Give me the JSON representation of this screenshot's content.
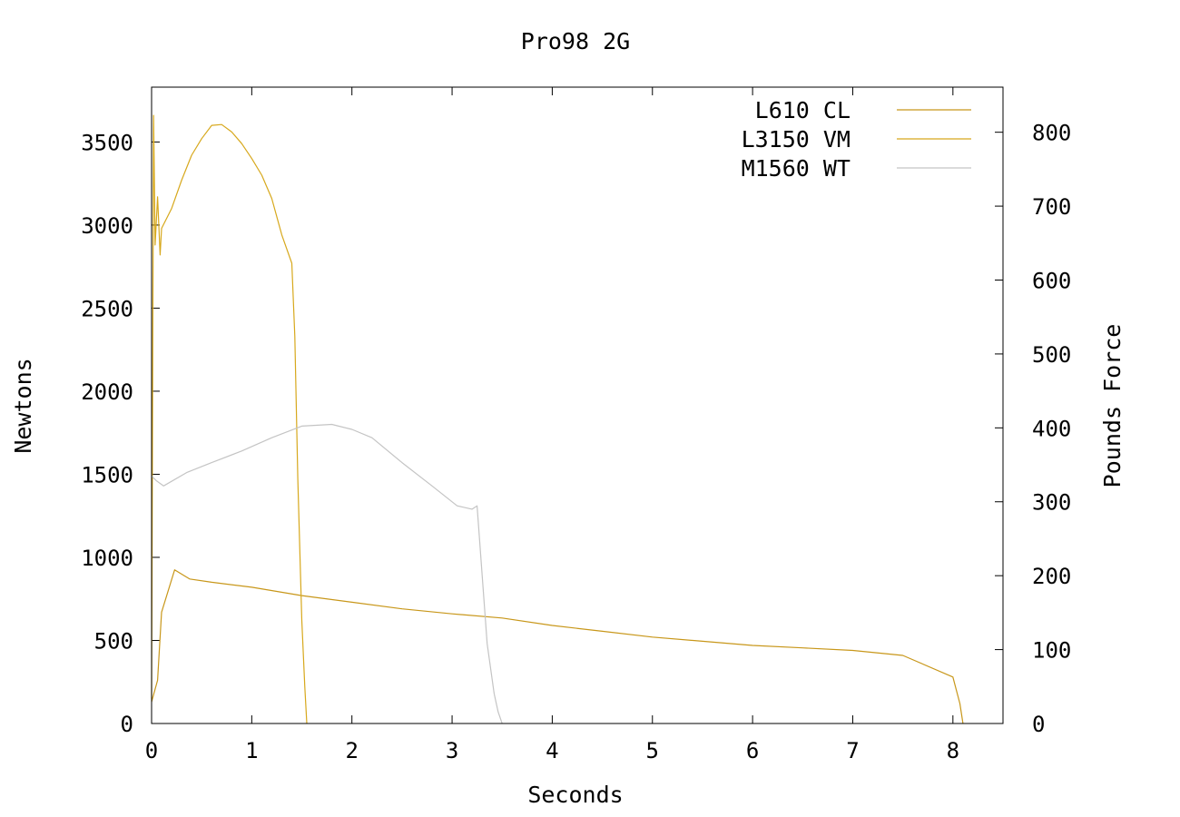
{
  "chart_data": {
    "type": "line",
    "title": "Pro98 2G",
    "xlabel": "Seconds",
    "ylabel": "Newtons",
    "y2label": "Pounds Force",
    "xlim": [
      0,
      8.5
    ],
    "ylim": [
      0,
      3830
    ],
    "y2lim": [
      0,
      861
    ],
    "xticks": [
      "0",
      "1",
      "2",
      "3",
      "4",
      "5",
      "6",
      "7",
      "8"
    ],
    "yticks": [
      "0",
      "500",
      "1000",
      "1500",
      "2000",
      "2500",
      "3000",
      "3500"
    ],
    "y2ticks": [
      "0",
      "100",
      "200",
      "300",
      "400",
      "500",
      "600",
      "700",
      "800"
    ],
    "grid": false,
    "legend_position": "top-right",
    "series": [
      {
        "name": "L610 CL",
        "color": "#c8971a",
        "points": [
          [
            0,
            130
          ],
          [
            0.06,
            260
          ],
          [
            0.1,
            670
          ],
          [
            0.23,
            925
          ],
          [
            0.38,
            870
          ],
          [
            0.6,
            850
          ],
          [
            1.0,
            820
          ],
          [
            1.5,
            770
          ],
          [
            2.0,
            730
          ],
          [
            2.5,
            690
          ],
          [
            3.0,
            660
          ],
          [
            3.5,
            635
          ],
          [
            4.0,
            590
          ],
          [
            4.5,
            555
          ],
          [
            5.0,
            520
          ],
          [
            5.5,
            495
          ],
          [
            6.0,
            470
          ],
          [
            6.5,
            455
          ],
          [
            7.0,
            440
          ],
          [
            7.5,
            410
          ],
          [
            8.0,
            280
          ],
          [
            8.07,
            120
          ],
          [
            8.1,
            0
          ]
        ]
      },
      {
        "name": "L3150 VM",
        "color": "#d7a81c",
        "points": [
          [
            0,
            150
          ],
          [
            0.01,
            1950
          ],
          [
            0.02,
            3660
          ],
          [
            0.035,
            2880
          ],
          [
            0.06,
            3170
          ],
          [
            0.085,
            2820
          ],
          [
            0.1,
            2980
          ],
          [
            0.2,
            3100
          ],
          [
            0.3,
            3270
          ],
          [
            0.4,
            3420
          ],
          [
            0.5,
            3520
          ],
          [
            0.6,
            3600
          ],
          [
            0.7,
            3605
          ],
          [
            0.8,
            3560
          ],
          [
            0.9,
            3490
          ],
          [
            1.0,
            3400
          ],
          [
            1.1,
            3300
          ],
          [
            1.2,
            3160
          ],
          [
            1.3,
            2940
          ],
          [
            1.4,
            2770
          ],
          [
            1.43,
            2330
          ],
          [
            1.46,
            1470
          ],
          [
            1.5,
            620
          ],
          [
            1.53,
            220
          ],
          [
            1.55,
            0
          ]
        ]
      },
      {
        "name": "M1560 WT",
        "color": "#c4c4c4",
        "points": [
          [
            0,
            1490
          ],
          [
            0.05,
            1460
          ],
          [
            0.12,
            1430
          ],
          [
            0.35,
            1510
          ],
          [
            0.6,
            1570
          ],
          [
            0.9,
            1640
          ],
          [
            1.2,
            1720
          ],
          [
            1.5,
            1790
          ],
          [
            1.8,
            1800
          ],
          [
            2.0,
            1770
          ],
          [
            2.2,
            1720
          ],
          [
            2.5,
            1570
          ],
          [
            2.8,
            1430
          ],
          [
            3.05,
            1310
          ],
          [
            3.2,
            1290
          ],
          [
            3.25,
            1310
          ],
          [
            3.35,
            480
          ],
          [
            3.42,
            180
          ],
          [
            3.46,
            70
          ],
          [
            3.5,
            0
          ]
        ]
      }
    ]
  }
}
